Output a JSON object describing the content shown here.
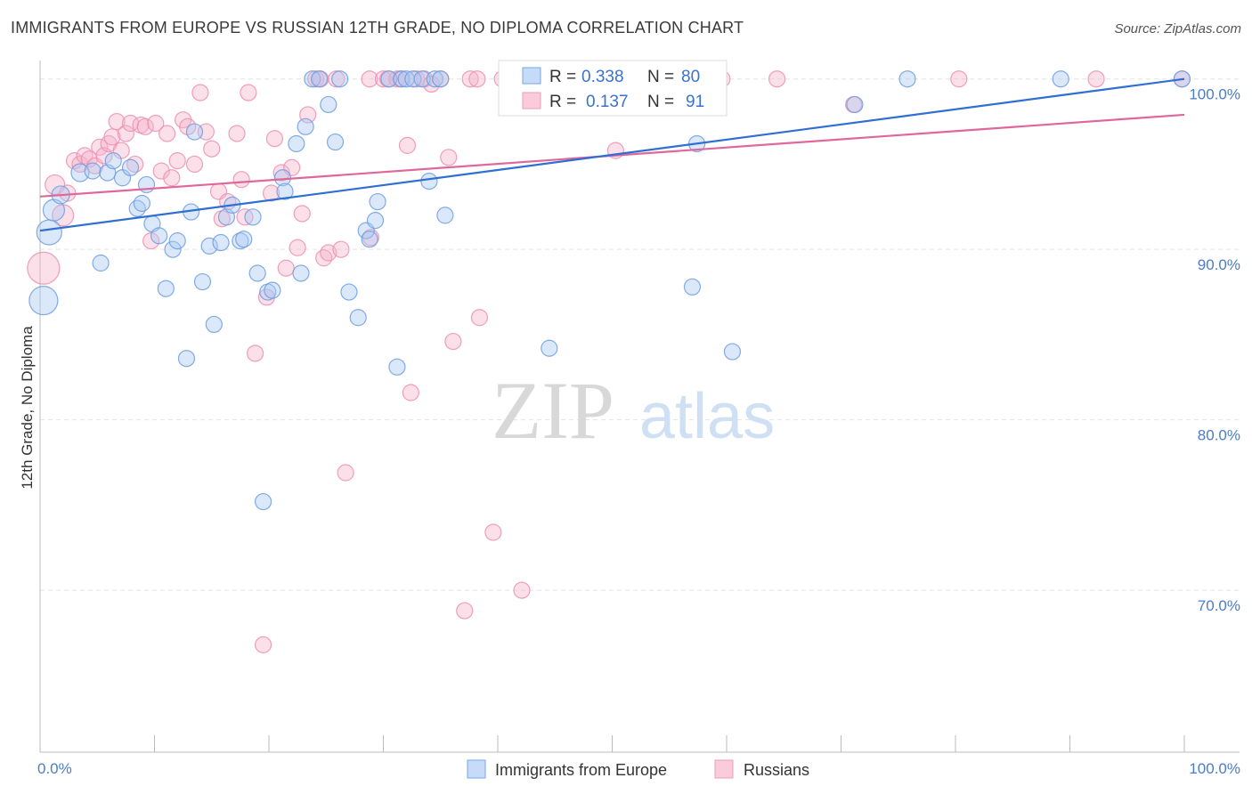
{
  "title": "IMMIGRANTS FROM EUROPE VS RUSSIAN 12TH GRADE, NO DIPLOMA CORRELATION CHART",
  "source": "Source: ZipAtlas.com",
  "watermark": {
    "zip": "ZIP",
    "atlas": "atlas"
  },
  "colors": {
    "blue": "#6b9de0",
    "blue_line": "#2f6fd1",
    "pink": "#f08fb1",
    "pink_line": "#e0679a",
    "tick_text": "#4a7cc9",
    "grid": "#e3e3e3"
  },
  "legend": {
    "r_label": "R =",
    "n_label": "N =",
    "rows": [
      {
        "r": "0.338",
        "n": "80"
      },
      {
        "r": "0.137",
        "n": "91"
      }
    ]
  },
  "chart_data": {
    "type": "scatter",
    "title": "IMMIGRANTS FROM EUROPE VS RUSSIAN 12TH GRADE, NO DIPLOMA CORRELATION CHART",
    "xlabel": "",
    "ylabel": "12th Grade, No Diploma",
    "xlim": [
      0,
      100
    ],
    "ylim": [
      60.5,
      101.5
    ],
    "x_tick_labels": [
      "0.0%",
      "100.0%"
    ],
    "y_ticks": [
      70,
      80,
      90,
      100
    ],
    "y_tick_labels": [
      "70.0%",
      "80.0%",
      "90.0%",
      "100.0%"
    ],
    "grid": true,
    "legend_position": "bottom",
    "series": [
      {
        "name": "Immigrants from Europe",
        "r": 0.338,
        "n": 80,
        "trend": [
          [
            0,
            91.1
          ],
          [
            100,
            100.0
          ]
        ],
        "points": [
          [
            0.3,
            87.0,
            16
          ],
          [
            0.8,
            91.0,
            14
          ],
          [
            1.2,
            92.3,
            12
          ],
          [
            1.8,
            93.2,
            10
          ],
          [
            3.5,
            94.5,
            10
          ],
          [
            4.6,
            94.6,
            9
          ],
          [
            5.3,
            89.2,
            9
          ],
          [
            5.9,
            94.5,
            9
          ],
          [
            6.4,
            95.2,
            9
          ],
          [
            7.2,
            94.2,
            9
          ],
          [
            7.9,
            94.8,
            9
          ],
          [
            8.5,
            92.4,
            9
          ],
          [
            8.9,
            92.7,
            9
          ],
          [
            9.3,
            93.8,
            9
          ],
          [
            9.8,
            91.5,
            9
          ],
          [
            10.4,
            90.8,
            9
          ],
          [
            11.0,
            87.7,
            9
          ],
          [
            11.6,
            90.0,
            9
          ],
          [
            12.0,
            90.5,
            9
          ],
          [
            12.8,
            83.6,
            9
          ],
          [
            13.2,
            92.2,
            9
          ],
          [
            13.5,
            96.9,
            9
          ],
          [
            14.2,
            88.1,
            9
          ],
          [
            14.8,
            90.2,
            9
          ],
          [
            15.2,
            85.6,
            9
          ],
          [
            15.8,
            90.4,
            9
          ],
          [
            16.3,
            91.9,
            9
          ],
          [
            16.8,
            92.6,
            9
          ],
          [
            17.5,
            90.5,
            9
          ],
          [
            17.8,
            90.6,
            9
          ],
          [
            18.6,
            91.9,
            9
          ],
          [
            19.0,
            88.6,
            9
          ],
          [
            19.5,
            75.2,
            9
          ],
          [
            19.9,
            87.5,
            9
          ],
          [
            20.3,
            87.6,
            9
          ],
          [
            21.2,
            94.2,
            9
          ],
          [
            21.4,
            93.4,
            9
          ],
          [
            22.4,
            96.2,
            9
          ],
          [
            22.8,
            88.6,
            9
          ],
          [
            23.2,
            97.2,
            9
          ],
          [
            23.8,
            100.0,
            9
          ],
          [
            24.4,
            100.0,
            9
          ],
          [
            25.2,
            98.5,
            9
          ],
          [
            25.8,
            96.3,
            9
          ],
          [
            26.2,
            100.0,
            9
          ],
          [
            27.0,
            87.5,
            9
          ],
          [
            27.8,
            86.0,
            9
          ],
          [
            28.5,
            91.1,
            9
          ],
          [
            28.8,
            90.6,
            9
          ],
          [
            29.3,
            91.7,
            9
          ],
          [
            29.5,
            92.8,
            9
          ],
          [
            30.5,
            100.0,
            9
          ],
          [
            31.2,
            83.1,
            9
          ],
          [
            31.6,
            100.0,
            9
          ],
          [
            32.0,
            100.0,
            9
          ],
          [
            32.6,
            100.0,
            9
          ],
          [
            33.4,
            100.0,
            9
          ],
          [
            34.0,
            94.0,
            9
          ],
          [
            34.5,
            100.0,
            9
          ],
          [
            35.0,
            100.0,
            9
          ],
          [
            35.4,
            92.0,
            9
          ],
          [
            44.5,
            84.2,
            9
          ],
          [
            56.5,
            100.0,
            9
          ],
          [
            57.0,
            87.8,
            9
          ],
          [
            57.4,
            96.2,
            9
          ],
          [
            60.5,
            84.0,
            9
          ],
          [
            71.2,
            98.5,
            9
          ],
          [
            75.8,
            100.0,
            9
          ],
          [
            89.2,
            100.0,
            9
          ],
          [
            99.8,
            100.0,
            9
          ]
        ]
      },
      {
        "name": "Russians",
        "r": 0.137,
        "n": 91,
        "trend": [
          [
            0,
            93.1
          ],
          [
            100,
            97.9
          ]
        ],
        "points": [
          [
            0.3,
            88.9,
            18
          ],
          [
            1.3,
            93.8,
            11
          ],
          [
            2.0,
            92.0,
            12
          ],
          [
            2.4,
            93.3,
            9
          ],
          [
            3.0,
            95.2,
            9
          ],
          [
            3.5,
            95.0,
            9
          ],
          [
            3.9,
            95.5,
            9
          ],
          [
            4.3,
            95.3,
            9
          ],
          [
            4.8,
            94.9,
            9
          ],
          [
            5.2,
            96.0,
            9
          ],
          [
            5.6,
            95.5,
            9
          ],
          [
            6.0,
            96.2,
            9
          ],
          [
            6.3,
            96.6,
            9
          ],
          [
            6.7,
            97.5,
            9
          ],
          [
            7.1,
            95.8,
            9
          ],
          [
            7.5,
            96.8,
            9
          ],
          [
            7.9,
            97.4,
            9
          ],
          [
            8.3,
            95.0,
            9
          ],
          [
            8.8,
            97.3,
            9
          ],
          [
            9.2,
            97.2,
            9
          ],
          [
            9.7,
            90.5,
            9
          ],
          [
            10.1,
            97.4,
            9
          ],
          [
            10.6,
            94.6,
            9
          ],
          [
            11.1,
            96.8,
            9
          ],
          [
            11.5,
            94.2,
            9
          ],
          [
            12.0,
            95.2,
            9
          ],
          [
            12.5,
            97.6,
            9
          ],
          [
            12.9,
            97.2,
            9
          ],
          [
            13.5,
            95.0,
            9
          ],
          [
            14.0,
            99.2,
            9
          ],
          [
            14.5,
            96.9,
            9
          ],
          [
            15.0,
            95.9,
            9
          ],
          [
            15.6,
            93.4,
            9
          ],
          [
            15.9,
            91.8,
            9
          ],
          [
            16.4,
            92.8,
            9
          ],
          [
            17.2,
            96.8,
            9
          ],
          [
            17.6,
            94.1,
            9
          ],
          [
            17.9,
            91.9,
            9
          ],
          [
            18.2,
            99.2,
            9
          ],
          [
            18.8,
            83.9,
            9
          ],
          [
            19.5,
            66.8,
            9
          ],
          [
            19.8,
            87.2,
            9
          ],
          [
            20.2,
            93.3,
            9
          ],
          [
            20.5,
            96.5,
            9
          ],
          [
            21.1,
            94.5,
            9
          ],
          [
            21.5,
            88.9,
            9
          ],
          [
            22.0,
            94.8,
            9
          ],
          [
            22.5,
            90.1,
            9
          ],
          [
            22.9,
            92.1,
            9
          ],
          [
            23.4,
            97.9,
            9
          ],
          [
            24.1,
            100.0,
            9
          ],
          [
            24.5,
            100.0,
            9
          ],
          [
            24.8,
            89.5,
            9
          ],
          [
            25.2,
            89.8,
            9
          ],
          [
            25.9,
            100.0,
            9
          ],
          [
            26.3,
            90.0,
            9
          ],
          [
            26.7,
            76.9,
            9
          ],
          [
            28.8,
            100.0,
            9
          ],
          [
            28.9,
            90.7,
            9
          ],
          [
            30.0,
            100.0,
            9
          ],
          [
            30.4,
            100.0,
            9
          ],
          [
            31.2,
            100.0,
            9
          ],
          [
            31.5,
            100.0,
            9
          ],
          [
            32.1,
            96.1,
            9
          ],
          [
            32.4,
            81.6,
            9
          ],
          [
            32.9,
            100.0,
            9
          ],
          [
            33.6,
            100.0,
            9
          ],
          [
            34.2,
            99.7,
            9
          ],
          [
            35.0,
            100.0,
            9
          ],
          [
            35.7,
            95.4,
            9
          ],
          [
            36.1,
            84.6,
            9
          ],
          [
            37.1,
            68.8,
            9
          ],
          [
            37.6,
            100.0,
            9
          ],
          [
            38.2,
            100.0,
            9
          ],
          [
            38.4,
            86.0,
            9
          ],
          [
            39.6,
            73.4,
            9
          ],
          [
            40.4,
            100.0,
            9
          ],
          [
            42.1,
            70.0,
            9
          ],
          [
            44.8,
            100.0,
            9
          ],
          [
            46.6,
            100.0,
            9
          ],
          [
            49.7,
            100.0,
            9
          ],
          [
            50.3,
            95.8,
            9
          ],
          [
            53.8,
            100.0,
            9
          ],
          [
            56.2,
            100.0,
            9
          ],
          [
            59.6,
            100.0,
            9
          ],
          [
            64.4,
            100.0,
            9
          ],
          [
            71.1,
            98.5,
            9
          ],
          [
            80.3,
            100.0,
            9
          ],
          [
            92.3,
            100.0,
            9
          ],
          [
            99.8,
            100.0,
            9
          ]
        ]
      }
    ]
  }
}
